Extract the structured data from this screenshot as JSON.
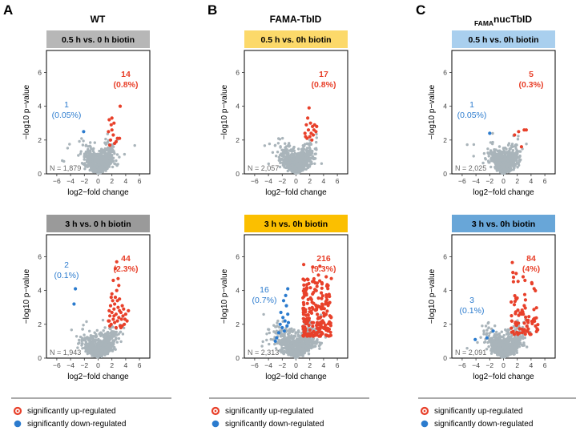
{
  "figure": {
    "columns": [
      {
        "letter": "A",
        "title": "WT",
        "title_sub": ""
      },
      {
        "letter": "B",
        "title": "FAMA-TbID",
        "title_sub": ""
      },
      {
        "letter": "C",
        "title": "nucTbID",
        "title_sub": "FAMA"
      }
    ],
    "xlabel": "log2−fold change",
    "ylabel": "−log10 p−value",
    "legend": {
      "up_label": "significantly up-regulated",
      "down_label": "significantly down-regulated",
      "up_color": "#e8402a",
      "down_color": "#2b7bce"
    },
    "colors": {
      "point_gray": "#a9b4ba",
      "panel_frame": "#000000",
      "header_gray_light": "#b7b7b7",
      "header_gray_dark": "#9a9a9a",
      "header_yellow_light": "#fcd96a",
      "header_yellow_dark": "#fbbf00",
      "header_blue_light": "#a9cfee",
      "header_blue_dark": "#68a6d8"
    }
  },
  "chart_data": [
    {
      "type": "scatter",
      "panel": "A-top",
      "header": "0.5 h vs. 0 h biotin",
      "header_color": "#b7b7b7",
      "xlim": [
        -7.5,
        7.5
      ],
      "ylim": [
        0,
        7.3
      ],
      "xticks": [
        -6,
        -4,
        -2,
        0,
        2,
        4,
        6
      ],
      "yticks": [
        0,
        2,
        4,
        6
      ],
      "n_label": "N = 1,879",
      "n_total": 1879,
      "down": {
        "count": "1",
        "pct": "(0.05%)",
        "points": [
          [
            -2.1,
            2.5
          ]
        ]
      },
      "up": {
        "count": "14",
        "pct": "(0.8%)",
        "points": [
          [
            1.5,
            2.5
          ],
          [
            1.6,
            3.2
          ],
          [
            1.8,
            2.0
          ],
          [
            1.9,
            2.9
          ],
          [
            2.0,
            3.3
          ],
          [
            2.2,
            2.3
          ],
          [
            2.4,
            1.8
          ],
          [
            2.6,
            1.9
          ],
          [
            2.8,
            2.1
          ],
          [
            3.1,
            2.1
          ],
          [
            2.0,
            2.6
          ],
          [
            2.3,
            3.0
          ],
          [
            3.2,
            4.0
          ],
          [
            1.7,
            1.7
          ]
        ]
      },
      "gray": {
        "x_spread": 1.1,
        "y_max": 3.6,
        "x_peak": 0.8,
        "seed": 11
      }
    },
    {
      "type": "scatter",
      "panel": "B-top",
      "header": "0.5 h vs. 0h biotin",
      "header_color": "#fcd96a",
      "xlim": [
        -7.5,
        7.5
      ],
      "ylim": [
        0,
        7.3
      ],
      "xticks": [
        -6,
        -4,
        -2,
        0,
        2,
        4,
        6
      ],
      "yticks": [
        0,
        2,
        4,
        6
      ],
      "n_label": "N = 2,057",
      "n_total": 2057,
      "down": {
        "count": "",
        "pct": "",
        "points": []
      },
      "up": {
        "count": "17",
        "pct": "(0.8%)",
        "points": [
          [
            1.3,
            2.4
          ],
          [
            1.5,
            2.9
          ],
          [
            1.6,
            2.1
          ],
          [
            1.7,
            3.3
          ],
          [
            1.8,
            2.6
          ],
          [
            2.0,
            2.2
          ],
          [
            2.1,
            3.0
          ],
          [
            2.2,
            2.4
          ],
          [
            2.4,
            2.8
          ],
          [
            2.5,
            2.3
          ],
          [
            2.7,
            2.9
          ],
          [
            2.9,
            2.5
          ],
          [
            1.9,
            3.9
          ],
          [
            2.3,
            2.0
          ],
          [
            1.4,
            2.2
          ],
          [
            2.6,
            2.6
          ],
          [
            3.0,
            2.8
          ]
        ]
      },
      "gray": {
        "x_spread": 1.1,
        "y_max": 4.0,
        "x_peak": 0.5,
        "seed": 23
      }
    },
    {
      "type": "scatter",
      "panel": "C-top",
      "header": "0.5 h vs. 0h biotin",
      "header_color": "#a9cfee",
      "xlim": [
        -7.5,
        7.5
      ],
      "ylim": [
        0,
        7.3
      ],
      "xticks": [
        -6,
        -4,
        -2,
        0,
        2,
        4,
        6
      ],
      "yticks": [
        0,
        2,
        4,
        6
      ],
      "n_label": "N = 2,025",
      "n_total": 2025,
      "down": {
        "count": "1",
        "pct": "(0.05%)",
        "points": [
          [
            -2.0,
            2.4
          ]
        ]
      },
      "up": {
        "count": "5",
        "pct": "(0.3%)",
        "points": [
          [
            1.6,
            2.3
          ],
          [
            2.2,
            2.5
          ],
          [
            2.6,
            1.6
          ],
          [
            3.0,
            2.6
          ],
          [
            3.3,
            2.6
          ]
        ]
      },
      "gray": {
        "x_spread": 1.0,
        "y_max": 3.5,
        "x_peak": 1.0,
        "seed": 37
      }
    },
    {
      "type": "scatter",
      "panel": "A-bottom",
      "header": "3 h vs. 0 h biotin",
      "header_color": "#9a9a9a",
      "xlim": [
        -7.5,
        7.5
      ],
      "ylim": [
        0,
        7.3
      ],
      "xticks": [
        -6,
        -4,
        -2,
        0,
        2,
        4,
        6
      ],
      "yticks": [
        0,
        2,
        4,
        6
      ],
      "n_label": "N = 1,943",
      "n_total": 1943,
      "down": {
        "count": "2",
        "pct": "(0.1%)",
        "points": [
          [
            -3.3,
            4.1
          ],
          [
            -3.5,
            3.2
          ]
        ]
      },
      "up": {
        "count": "44",
        "pct": "(2.3%)",
        "points": [
          [
            1.5,
            2.2
          ],
          [
            1.6,
            2.8
          ],
          [
            1.7,
            2.5
          ],
          [
            1.8,
            3.1
          ],
          [
            1.9,
            2.0
          ],
          [
            2.0,
            2.7
          ],
          [
            2.1,
            3.4
          ],
          [
            2.2,
            2.3
          ],
          [
            2.3,
            2.9
          ],
          [
            2.4,
            2.1
          ],
          [
            2.5,
            3.6
          ],
          [
            2.6,
            2.6
          ],
          [
            2.7,
            4.0
          ],
          [
            2.8,
            2.2
          ],
          [
            2.9,
            3.0
          ],
          [
            3.0,
            2.4
          ],
          [
            3.1,
            2.8
          ],
          [
            3.2,
            1.9
          ],
          [
            3.3,
            2.7
          ],
          [
            3.4,
            2.3
          ],
          [
            3.5,
            3.1
          ],
          [
            3.6,
            2.5
          ],
          [
            3.8,
            2.0
          ],
          [
            4.0,
            2.6
          ],
          [
            4.2,
            2.2
          ],
          [
            2.2,
            4.6
          ],
          [
            2.5,
            5.3
          ],
          [
            2.7,
            5.7
          ],
          [
            2.9,
            4.7
          ],
          [
            3.1,
            3.5
          ],
          [
            2.0,
            3.8
          ],
          [
            1.7,
            1.9
          ],
          [
            2.4,
            3.2
          ],
          [
            3.3,
            1.8
          ],
          [
            3.7,
            2.9
          ],
          [
            1.9,
            3.6
          ],
          [
            2.6,
            1.8
          ],
          [
            3.0,
            4.3
          ],
          [
            2.3,
            2.5
          ],
          [
            3.5,
            1.9
          ],
          [
            4.4,
            2.8
          ],
          [
            2.8,
            3.4
          ],
          [
            1.6,
            2.2
          ],
          [
            3.9,
            2.3
          ]
        ]
      },
      "gray": {
        "x_spread": 1.2,
        "y_max": 4.5,
        "x_peak": 1.0,
        "seed": 53
      }
    },
    {
      "type": "scatter",
      "panel": "B-bottom",
      "header": "3 h vs. 0h biotin",
      "header_color": "#fbbf00",
      "xlim": [
        -7.5,
        7.5
      ],
      "ylim": [
        0,
        7.3
      ],
      "xticks": [
        -6,
        -4,
        -2,
        0,
        2,
        4,
        6
      ],
      "yticks": [
        0,
        2,
        4,
        6
      ],
      "n_label": "N = 2,313",
      "n_total": 2313,
      "down": {
        "count": "16",
        "pct": "(0.7%)",
        "points": [
          [
            -1.2,
            2.6
          ],
          [
            -1.4,
            3.1
          ],
          [
            -1.6,
            2.2
          ],
          [
            -1.8,
            3.4
          ],
          [
            -2.0,
            1.8
          ],
          [
            -2.2,
            2.7
          ],
          [
            -1.3,
            1.9
          ],
          [
            -1.5,
            3.7
          ],
          [
            -1.9,
            2.4
          ],
          [
            -2.5,
            1.5
          ],
          [
            -2.8,
            1.2
          ],
          [
            -1.1,
            2.1
          ],
          [
            -1.7,
            1.6
          ],
          [
            -2.3,
            2.0
          ],
          [
            -1.2,
            4.1
          ],
          [
            -3.0,
            1.0
          ]
        ]
      },
      "up": {
        "count": "216",
        "pct": "(9.3%)",
        "points": [],
        "cloud": {
          "n": 216,
          "x_min": 1.0,
          "x_max": 5.2,
          "y_min": 1.3,
          "y_max": 6.0,
          "seed": 71
        }
      },
      "gray": {
        "x_spread": 1.4,
        "y_max": 4.6,
        "x_peak": 0.5,
        "seed": 67
      }
    },
    {
      "type": "scatter",
      "panel": "C-bottom",
      "header": "3 h vs. 0h biotin",
      "header_color": "#68a6d8",
      "xlim": [
        -7.5,
        7.5
      ],
      "ylim": [
        0,
        7.3
      ],
      "xticks": [
        -6,
        -4,
        -2,
        0,
        2,
        4,
        6
      ],
      "yticks": [
        0,
        2,
        4,
        6
      ],
      "n_label": "N = 2,091",
      "n_total": 2091,
      "down": {
        "count": "3",
        "pct": "(0.1%)",
        "points": [
          [
            -1.5,
            1.6
          ],
          [
            -2.4,
            1.2
          ],
          [
            -4.1,
            1.1
          ]
        ]
      },
      "up": {
        "count": "84",
        "pct": "(4%)",
        "points": [],
        "cloud": {
          "n": 84,
          "x_min": 1.1,
          "x_max": 5.0,
          "y_min": 1.4,
          "y_max": 6.2,
          "seed": 89
        }
      },
      "gray": {
        "x_spread": 1.2,
        "y_max": 4.0,
        "x_peak": 0.8,
        "seed": 97
      }
    }
  ]
}
